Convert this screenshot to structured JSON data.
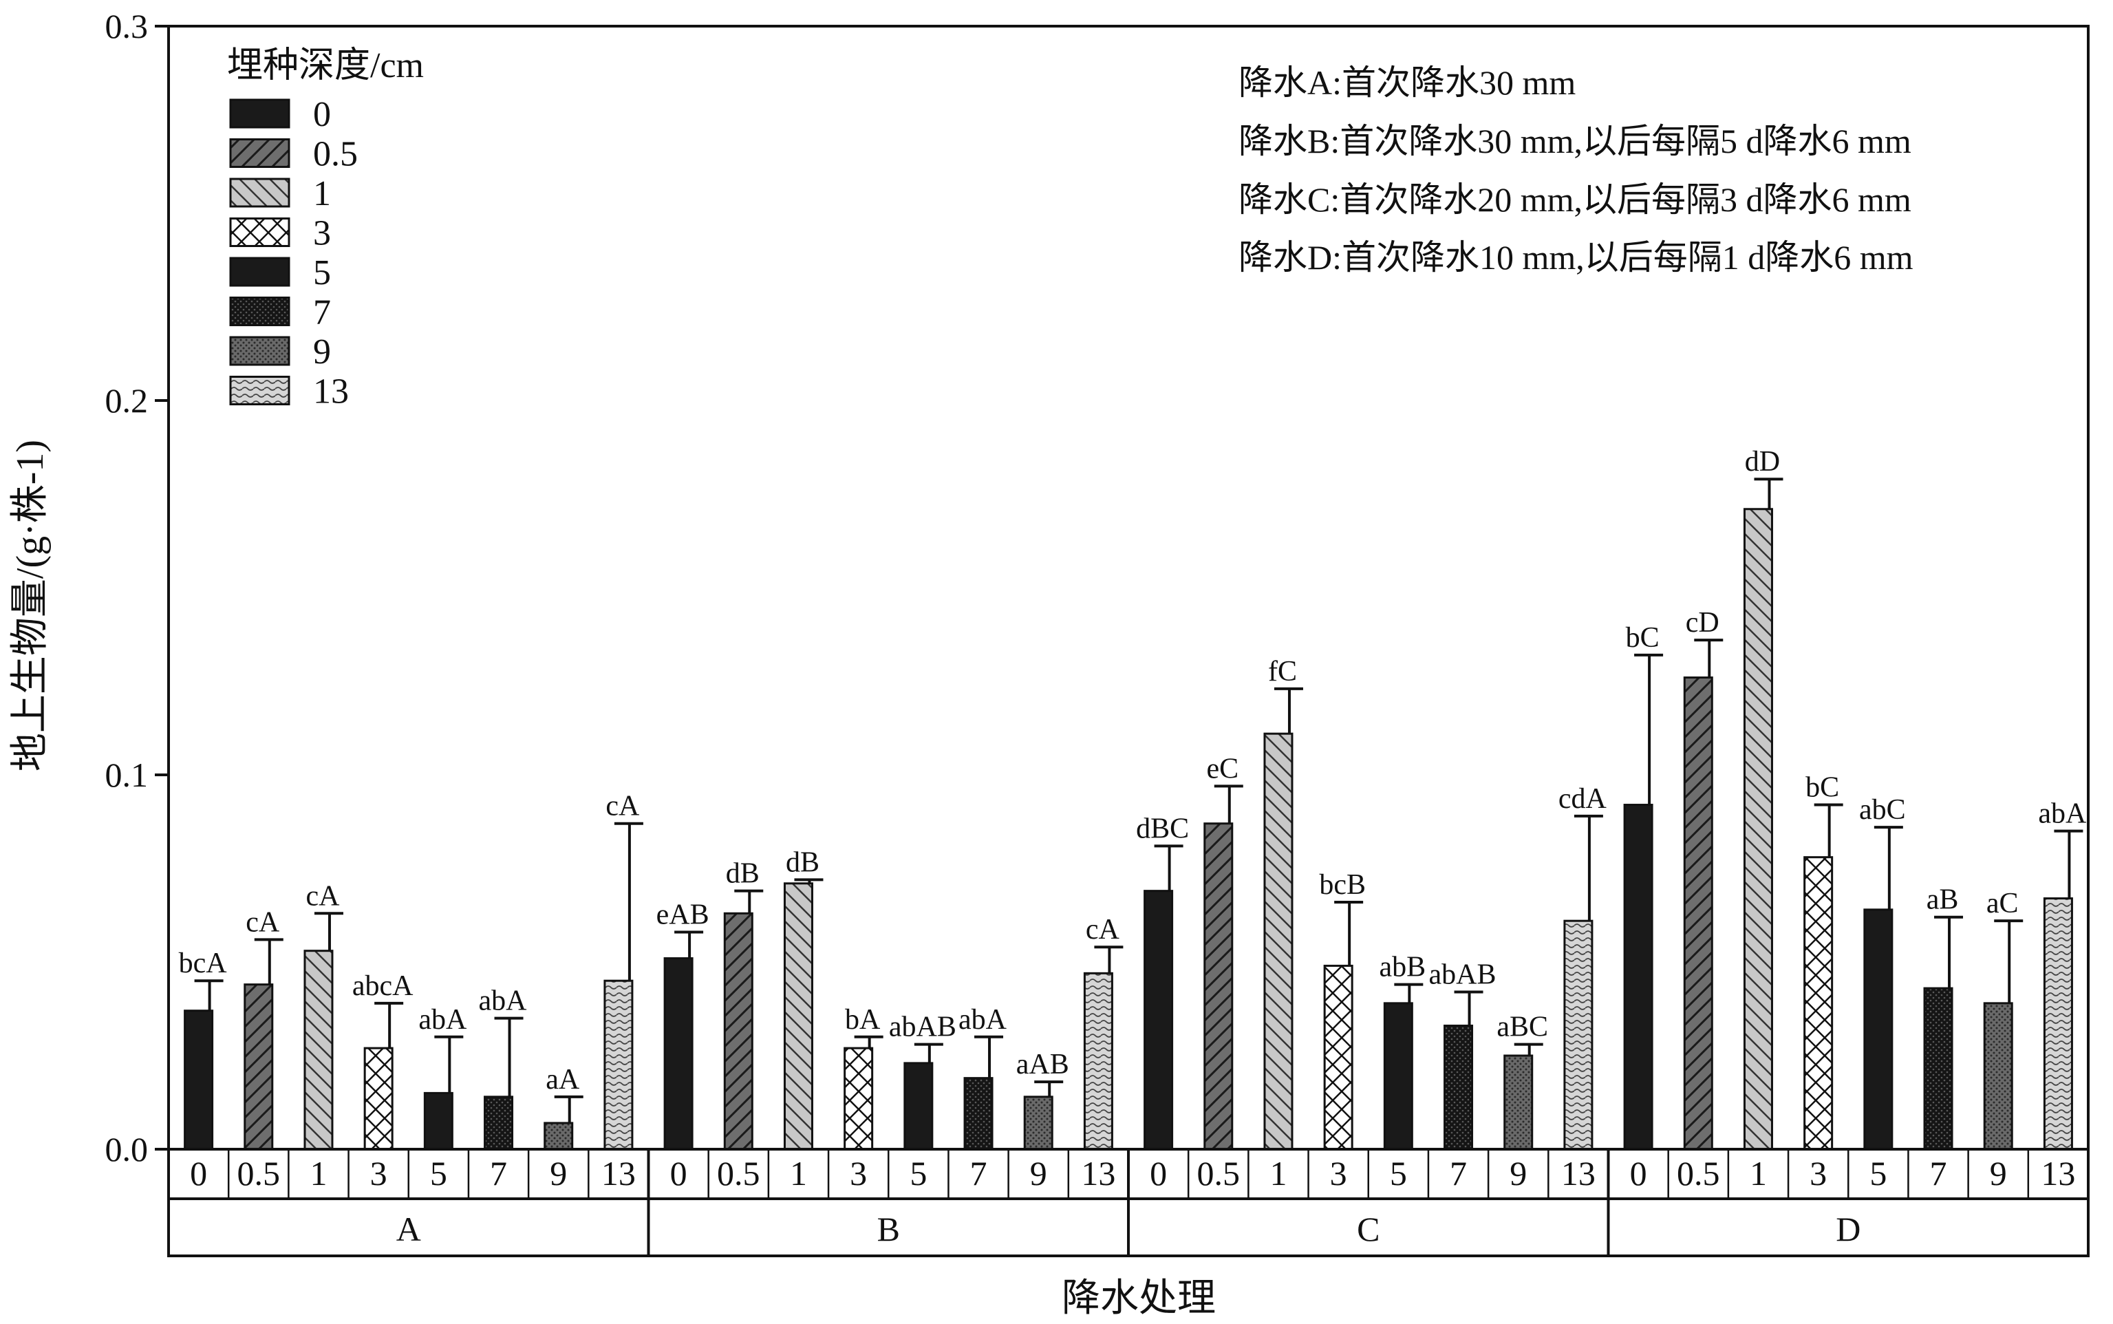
{
  "chart_data": {
    "type": "bar",
    "xlabel": "降水处理",
    "ylabel": "地上生物量/(g·株-1)",
    "ylim": [
      0,
      0.3
    ],
    "yticks": [
      "0.0",
      "0.1",
      "0.2",
      "0.3"
    ],
    "grid": false,
    "legend": {
      "title": "埋种深度/cm",
      "position": "top-left",
      "entries": [
        "0",
        "0.5",
        "1",
        "3",
        "5",
        "7",
        "9",
        "13"
      ]
    },
    "notes": [
      "降水A:首次降水30 mm",
      "降水B:首次降水30 mm,以后每隔5 d降水6 mm",
      "降水C:首次降水20 mm,以后每隔3 d降水6 mm",
      "降水D:首次降水10 mm,以后每隔1 d降水6 mm"
    ],
    "groups": [
      "A",
      "B",
      "C",
      "D"
    ],
    "depths": [
      "0",
      "0.5",
      "1",
      "3",
      "5",
      "7",
      "9",
      "13"
    ],
    "series": [
      {
        "name": "0",
        "values": [
          0.037,
          0.051,
          0.069,
          0.092
        ],
        "errors": [
          0.008,
          0.007,
          0.012,
          0.04
        ],
        "letters": [
          "bcA",
          "eAB",
          "dBC",
          "bC"
        ]
      },
      {
        "name": "0.5",
        "values": [
          0.044,
          0.063,
          0.087,
          0.126
        ],
        "errors": [
          0.012,
          0.006,
          0.01,
          0.01
        ],
        "letters": [
          "cA",
          "dB",
          "eC",
          "cD"
        ]
      },
      {
        "name": "1",
        "values": [
          0.053,
          0.071,
          0.111,
          0.171
        ],
        "errors": [
          0.01,
          0.001,
          0.012,
          0.008
        ],
        "letters": [
          "cA",
          "dB",
          "fC",
          "dD"
        ]
      },
      {
        "name": "3",
        "values": [
          0.027,
          0.027,
          0.049,
          0.078
        ],
        "errors": [
          0.012,
          0.003,
          0.017,
          0.014
        ],
        "letters": [
          "abcA",
          "bA",
          "bcB",
          "bC"
        ]
      },
      {
        "name": "5",
        "values": [
          0.015,
          0.023,
          0.039,
          0.064
        ],
        "errors": [
          0.015,
          0.005,
          0.005,
          0.022
        ],
        "letters": [
          "abA",
          "abAB",
          "abB",
          "abC"
        ]
      },
      {
        "name": "7",
        "values": [
          0.014,
          0.019,
          0.033,
          0.043
        ],
        "errors": [
          0.021,
          0.011,
          0.009,
          0.019
        ],
        "letters": [
          "abA",
          "abA",
          "abAB",
          "aB"
        ]
      },
      {
        "name": "9",
        "values": [
          0.007,
          0.014,
          0.025,
          0.039
        ],
        "errors": [
          0.007,
          0.004,
          0.003,
          0.022
        ],
        "letters": [
          "aA",
          "aAB",
          "aBC",
          "aC"
        ]
      },
      {
        "name": "13",
        "values": [
          0.045,
          0.047,
          0.061,
          0.067
        ],
        "errors": [
          0.042,
          0.007,
          0.028,
          0.018
        ],
        "letters": [
          "cA",
          "cA",
          "cdA",
          "abA"
        ]
      }
    ],
    "colors": {
      "axis": "#111111",
      "bar_stroke": "#111111",
      "background": "#ffffff"
    },
    "patterns": [
      "solid-black",
      "dark-gray-diagonal",
      "light-gray-backdiagonal",
      "white-crosshatch",
      "solid-black",
      "black-dotted",
      "gray-dotted",
      "light-wavy"
    ]
  }
}
